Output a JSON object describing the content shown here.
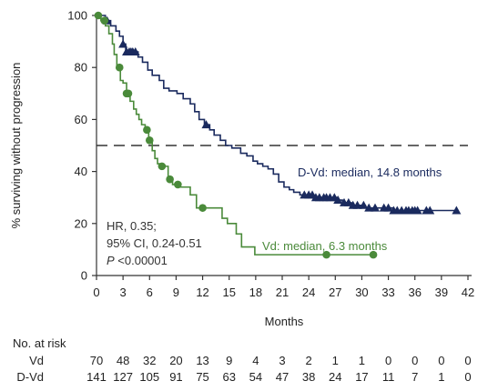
{
  "chart_data": {
    "type": "line",
    "subtype": "kaplan-meier",
    "xlabel": "Months",
    "ylabel": "% surviving without progression",
    "xlim": [
      0,
      42
    ],
    "ylim": [
      0,
      100
    ],
    "x_ticks": [
      0,
      3,
      6,
      9,
      12,
      15,
      18,
      21,
      24,
      27,
      30,
      33,
      36,
      39,
      42
    ],
    "y_ticks": [
      0,
      20,
      40,
      60,
      80,
      100
    ],
    "grid": false,
    "reference_line": {
      "y": 50,
      "style": "dashed"
    },
    "series": [
      {
        "name": "D-Vd",
        "color": "#1a2a5e",
        "marker": "triangle",
        "steps": [
          [
            0,
            100
          ],
          [
            1.0,
            98
          ],
          [
            1.6,
            96
          ],
          [
            2.2,
            94
          ],
          [
            2.6,
            92
          ],
          [
            3.0,
            89
          ],
          [
            3.3,
            86
          ],
          [
            4.7,
            84
          ],
          [
            5.2,
            82
          ],
          [
            5.8,
            79
          ],
          [
            6.3,
            77
          ],
          [
            7.1,
            75
          ],
          [
            7.6,
            72
          ],
          [
            8.2,
            71
          ],
          [
            9.1,
            70
          ],
          [
            9.8,
            68
          ],
          [
            10.6,
            66
          ],
          [
            11.1,
            63
          ],
          [
            11.6,
            60
          ],
          [
            12.2,
            58
          ],
          [
            12.8,
            56
          ],
          [
            13.3,
            54
          ],
          [
            14.0,
            52
          ],
          [
            14.6,
            50
          ],
          [
            15.3,
            49
          ],
          [
            16.3,
            47
          ],
          [
            17.0,
            46
          ],
          [
            17.7,
            44
          ],
          [
            18.2,
            43
          ],
          [
            18.8,
            42
          ],
          [
            19.4,
            41
          ],
          [
            20.0,
            39
          ],
          [
            20.6,
            36
          ],
          [
            21.2,
            34
          ],
          [
            21.8,
            33
          ],
          [
            22.3,
            32
          ],
          [
            23.0,
            31
          ],
          [
            24.6,
            30
          ],
          [
            27.2,
            29
          ],
          [
            27.8,
            28
          ],
          [
            28.8,
            27
          ],
          [
            30.4,
            26
          ],
          [
            33.6,
            25
          ],
          [
            38.8,
            25
          ],
          [
            40.7,
            25
          ]
        ],
        "censor_x": [
          1.2,
          3.0,
          3.4,
          3.7,
          3.9,
          4.1,
          4.4,
          12.4,
          23.5,
          24.0,
          24.4,
          24.8,
          25.2,
          25.7,
          26.0,
          26.4,
          26.9,
          27.3,
          28.0,
          28.5,
          29.0,
          29.5,
          30.2,
          30.8,
          31.5,
          32.5,
          33.0,
          33.6,
          34.0,
          34.5,
          35.0,
          35.3,
          35.7,
          36.0,
          36.3,
          37.3,
          37.7,
          40.7
        ]
      },
      {
        "name": "Vd",
        "color": "#4a8a3a",
        "marker": "circle",
        "steps": [
          [
            0,
            100
          ],
          [
            0.5,
            98
          ],
          [
            1.0,
            96
          ],
          [
            1.4,
            93
          ],
          [
            1.8,
            89
          ],
          [
            2.0,
            85
          ],
          [
            2.3,
            80
          ],
          [
            2.7,
            75
          ],
          [
            3.0,
            74
          ],
          [
            3.4,
            70
          ],
          [
            3.8,
            67
          ],
          [
            4.2,
            64
          ],
          [
            4.5,
            62
          ],
          [
            4.8,
            60
          ],
          [
            5.1,
            58
          ],
          [
            5.5,
            56
          ],
          [
            5.9,
            52
          ],
          [
            6.3,
            48
          ],
          [
            6.6,
            45
          ],
          [
            6.9,
            43
          ],
          [
            7.3,
            42
          ],
          [
            8.1,
            37
          ],
          [
            8.6,
            35
          ],
          [
            9.3,
            34
          ],
          [
            10.6,
            31
          ],
          [
            11.3,
            26
          ],
          [
            14.2,
            22
          ],
          [
            14.8,
            20
          ],
          [
            15.8,
            16
          ],
          [
            16.4,
            11
          ],
          [
            17.9,
            8
          ],
          [
            31.3,
            8
          ]
        ],
        "censor_x": [
          0.2,
          0.9,
          2.6,
          3.4,
          3.6,
          5.7,
          6.0,
          7.4,
          8.3,
          9.2,
          12.0,
          26.0,
          31.3
        ]
      }
    ],
    "annotations": {
      "dvd": "D-Vd: median, 14.8 months",
      "vd": "Vd: median, 6.3 months",
      "hr": "HR, 0.35;",
      "ci": "95% CI, 0.24-0.51",
      "p_symbol": "P",
      "p_value": " <0.00001"
    },
    "risk_table": {
      "title": "No. at risk",
      "rows": [
        {
          "label": "Vd",
          "values": [
            "70",
            "48",
            "32",
            "20",
            "13",
            "9",
            "4",
            "3",
            "2",
            "1",
            "1",
            "0",
            "0",
            "0",
            "0"
          ]
        },
        {
          "label": "D-Vd",
          "values": [
            "141",
            "127",
            "105",
            "91",
            "75",
            "63",
            "54",
            "47",
            "38",
            "24",
            "17",
            "11",
            "7",
            "1",
            "0"
          ]
        }
      ]
    }
  },
  "colors": {
    "dvd": "#1a2a5e",
    "vd": "#4a8a3a",
    "axis": "#333333",
    "ref": "#333333"
  }
}
